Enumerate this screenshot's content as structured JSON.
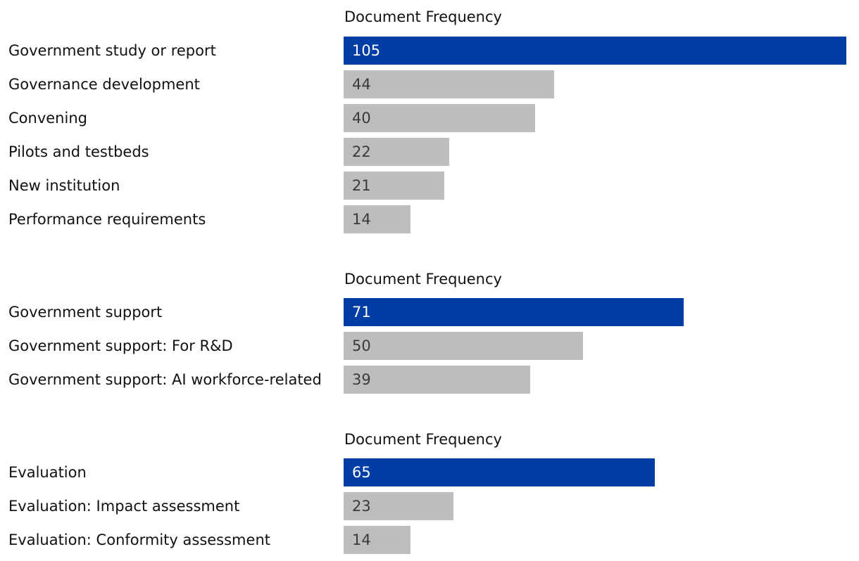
{
  "colors": {
    "highlight": "#003da5",
    "default": "#bdbdbd",
    "label_text": "#111111",
    "value_text_on_highlight": "#ffffff",
    "value_text_on_default": "#3a3a3a"
  },
  "chart_data": [
    {
      "type": "bar",
      "orientation": "horizontal",
      "header": "Document Frequency",
      "xlim": [
        0,
        105
      ],
      "categories": [
        "Government study or report",
        "Governance development",
        "Convening",
        "Pilots and testbeds",
        "New institution",
        "Performance requirements"
      ],
      "values": [
        105,
        44,
        40,
        22,
        21,
        14
      ],
      "highlight_index": 0
    },
    {
      "type": "bar",
      "orientation": "horizontal",
      "header": "Document Frequency",
      "xlim": [
        0,
        105
      ],
      "categories": [
        "Government support",
        "Government support: For R&D",
        "Government support: AI workforce-related"
      ],
      "values": [
        71,
        50,
        39
      ],
      "highlight_index": 0
    },
    {
      "type": "bar",
      "orientation": "horizontal",
      "header": "Document Frequency",
      "xlim": [
        0,
        105
      ],
      "categories": [
        "Evaluation",
        "Evaluation: Impact assessment",
        "Evaluation: Conformity assessment"
      ],
      "values": [
        65,
        23,
        14
      ],
      "highlight_index": 0
    }
  ]
}
